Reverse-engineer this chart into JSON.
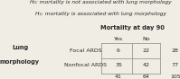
{
  "h0": "H₀: mortality is not associated with lung morphology",
  "h1": "H₁: mortality is associated with lung morphology",
  "col_header": "Mortality at day 90",
  "col_sub": [
    "Yes",
    "No"
  ],
  "row_label_main": "Lung",
  "row_label_sub": "morphology",
  "rows": [
    "Focal ARDS",
    "Nonfocal ARDS"
  ],
  "data": [
    [
      6,
      22,
      28
    ],
    [
      35,
      42,
      77
    ]
  ],
  "totals": [
    41,
    64,
    105
  ],
  "bg_color": "#f0ede4",
  "text_color": "#2a2a2a",
  "line_color": "#888888"
}
